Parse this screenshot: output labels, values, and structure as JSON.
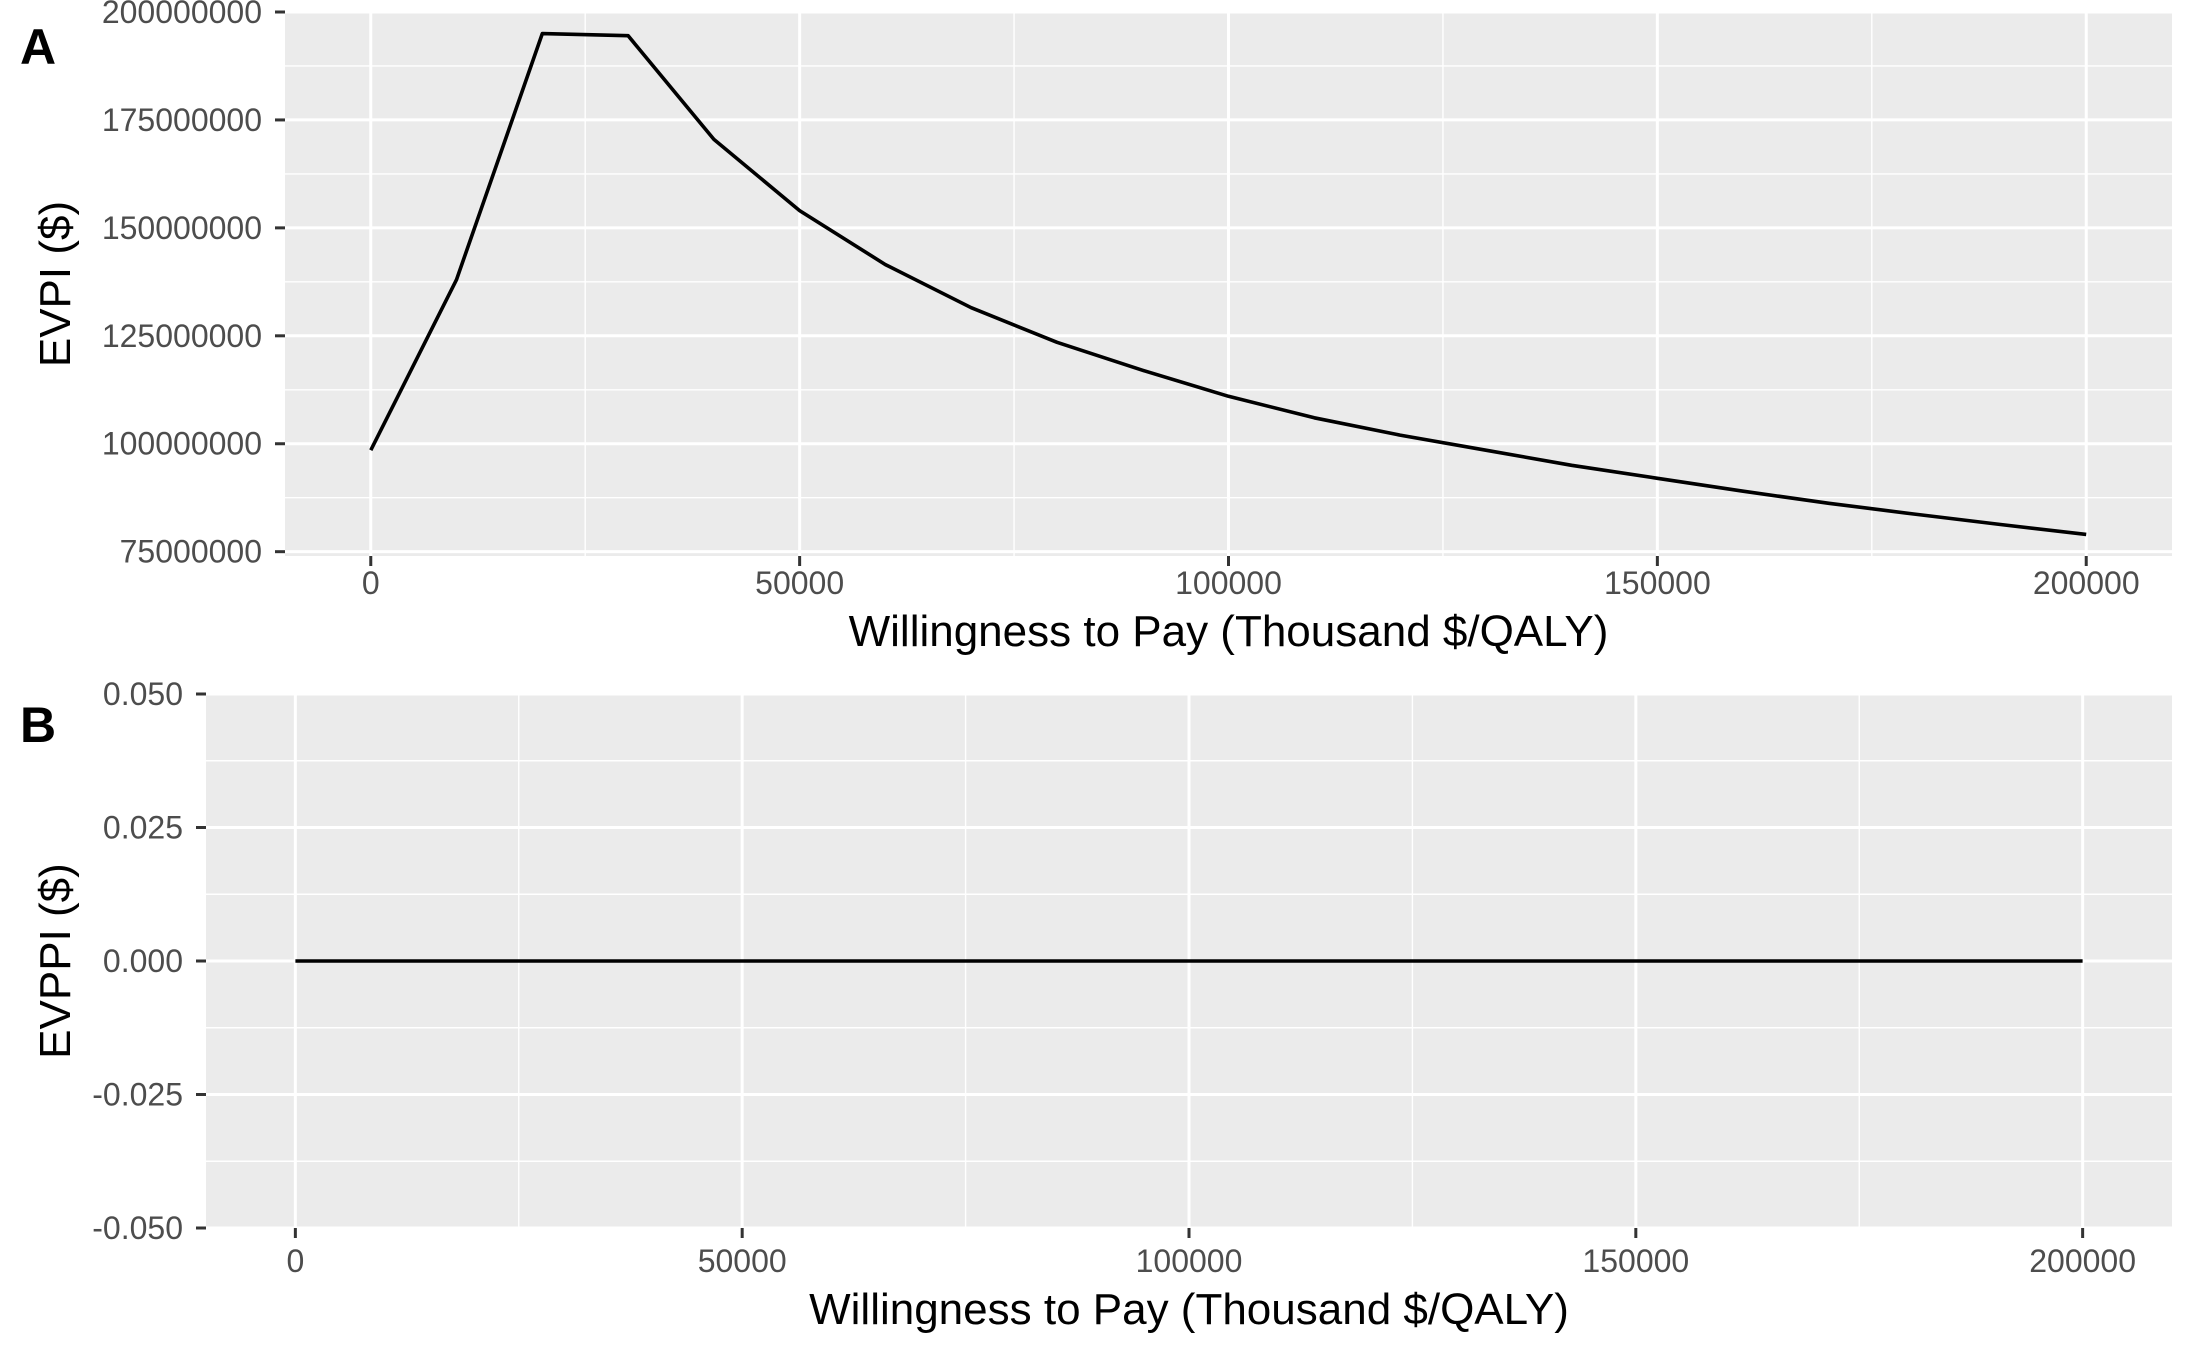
{
  "chart_data": [
    {
      "tag": "A",
      "type": "line",
      "xlabel": "Willingness to Pay (Thousand $/QALY)",
      "ylabel": "EVPI ($)",
      "xlim": [
        -10000,
        210000
      ],
      "ylim": [
        74000000,
        200000000
      ],
      "xticks": [
        0,
        50000,
        100000,
        150000,
        200000
      ],
      "xtick_labels": [
        "0",
        "50000",
        "100000",
        "150000",
        "200000"
      ],
      "yticks": [
        75000000,
        100000000,
        125000000,
        150000000,
        175000000,
        200000000
      ],
      "ytick_labels": [
        "75000000",
        "100000000",
        "125000000",
        "150000000",
        "175000000",
        "200000000"
      ],
      "grid": true,
      "series": [
        {
          "color": "#000000",
          "x": [
            0,
            10000,
            20000,
            30000,
            40000,
            50000,
            60000,
            70000,
            80000,
            90000,
            100000,
            110000,
            120000,
            130000,
            140000,
            150000,
            160000,
            170000,
            180000,
            190000,
            200000
          ],
          "y": [
            98500000,
            138000000,
            195000000,
            194500000,
            170500000,
            154000000,
            141500000,
            131500000,
            123500000,
            117000000,
            111000000,
            106000000,
            102000000,
            98500000,
            95000000,
            92000000,
            89000000,
            86200000,
            83700000,
            81300000,
            79000000
          ]
        }
      ]
    },
    {
      "tag": "B",
      "type": "line",
      "xlabel": "Willingness to Pay (Thousand $/QALY)",
      "ylabel": "EVPPI ($)",
      "xlim": [
        -10000,
        210000
      ],
      "ylim": [
        -0.05,
        0.05
      ],
      "xticks": [
        0,
        50000,
        100000,
        150000,
        200000
      ],
      "xtick_labels": [
        "0",
        "50000",
        "100000",
        "150000",
        "200000"
      ],
      "yticks": [
        -0.05,
        -0.025,
        0,
        0.025,
        0.05
      ],
      "ytick_labels": [
        "-0.050",
        "-0.025",
        "0.000",
        "0.025",
        "0.050"
      ],
      "grid": true,
      "series": [
        {
          "color": "#000000",
          "x": [
            0,
            10000,
            20000,
            30000,
            40000,
            50000,
            60000,
            70000,
            80000,
            90000,
            100000,
            110000,
            120000,
            130000,
            140000,
            150000,
            160000,
            170000,
            180000,
            190000,
            200000
          ],
          "y": [
            0,
            0,
            0,
            0,
            0,
            0,
            0,
            0,
            0,
            0,
            0,
            0,
            0,
            0,
            0,
            0,
            0,
            0,
            0,
            0,
            0
          ]
        }
      ]
    }
  ]
}
